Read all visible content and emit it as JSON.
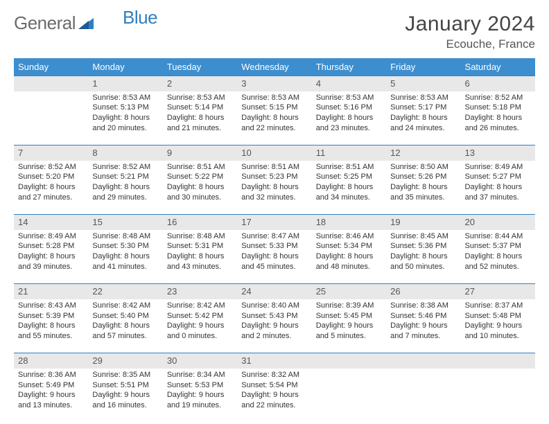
{
  "logo": {
    "part1": "General",
    "part2": "Blue"
  },
  "title": "January 2024",
  "location": "Ecouche, France",
  "colors": {
    "header_bg": "#3d8ecf",
    "row_divider": "#2f7fc2",
    "daynum_bg": "#e8e8e8",
    "logo_gray": "#6b6b6b",
    "logo_blue": "#2f7fc2"
  },
  "day_headers": [
    "Sunday",
    "Monday",
    "Tuesday",
    "Wednesday",
    "Thursday",
    "Friday",
    "Saturday"
  ],
  "weeks": [
    [
      {
        "num": "",
        "sunrise": "",
        "sunset": "",
        "daylight": ""
      },
      {
        "num": "1",
        "sunrise": "Sunrise: 8:53 AM",
        "sunset": "Sunset: 5:13 PM",
        "daylight": "Daylight: 8 hours and 20 minutes."
      },
      {
        "num": "2",
        "sunrise": "Sunrise: 8:53 AM",
        "sunset": "Sunset: 5:14 PM",
        "daylight": "Daylight: 8 hours and 21 minutes."
      },
      {
        "num": "3",
        "sunrise": "Sunrise: 8:53 AM",
        "sunset": "Sunset: 5:15 PM",
        "daylight": "Daylight: 8 hours and 22 minutes."
      },
      {
        "num": "4",
        "sunrise": "Sunrise: 8:53 AM",
        "sunset": "Sunset: 5:16 PM",
        "daylight": "Daylight: 8 hours and 23 minutes."
      },
      {
        "num": "5",
        "sunrise": "Sunrise: 8:53 AM",
        "sunset": "Sunset: 5:17 PM",
        "daylight": "Daylight: 8 hours and 24 minutes."
      },
      {
        "num": "6",
        "sunrise": "Sunrise: 8:52 AM",
        "sunset": "Sunset: 5:18 PM",
        "daylight": "Daylight: 8 hours and 26 minutes."
      }
    ],
    [
      {
        "num": "7",
        "sunrise": "Sunrise: 8:52 AM",
        "sunset": "Sunset: 5:20 PM",
        "daylight": "Daylight: 8 hours and 27 minutes."
      },
      {
        "num": "8",
        "sunrise": "Sunrise: 8:52 AM",
        "sunset": "Sunset: 5:21 PM",
        "daylight": "Daylight: 8 hours and 29 minutes."
      },
      {
        "num": "9",
        "sunrise": "Sunrise: 8:51 AM",
        "sunset": "Sunset: 5:22 PM",
        "daylight": "Daylight: 8 hours and 30 minutes."
      },
      {
        "num": "10",
        "sunrise": "Sunrise: 8:51 AM",
        "sunset": "Sunset: 5:23 PM",
        "daylight": "Daylight: 8 hours and 32 minutes."
      },
      {
        "num": "11",
        "sunrise": "Sunrise: 8:51 AM",
        "sunset": "Sunset: 5:25 PM",
        "daylight": "Daylight: 8 hours and 34 minutes."
      },
      {
        "num": "12",
        "sunrise": "Sunrise: 8:50 AM",
        "sunset": "Sunset: 5:26 PM",
        "daylight": "Daylight: 8 hours and 35 minutes."
      },
      {
        "num": "13",
        "sunrise": "Sunrise: 8:49 AM",
        "sunset": "Sunset: 5:27 PM",
        "daylight": "Daylight: 8 hours and 37 minutes."
      }
    ],
    [
      {
        "num": "14",
        "sunrise": "Sunrise: 8:49 AM",
        "sunset": "Sunset: 5:28 PM",
        "daylight": "Daylight: 8 hours and 39 minutes."
      },
      {
        "num": "15",
        "sunrise": "Sunrise: 8:48 AM",
        "sunset": "Sunset: 5:30 PM",
        "daylight": "Daylight: 8 hours and 41 minutes."
      },
      {
        "num": "16",
        "sunrise": "Sunrise: 8:48 AM",
        "sunset": "Sunset: 5:31 PM",
        "daylight": "Daylight: 8 hours and 43 minutes."
      },
      {
        "num": "17",
        "sunrise": "Sunrise: 8:47 AM",
        "sunset": "Sunset: 5:33 PM",
        "daylight": "Daylight: 8 hours and 45 minutes."
      },
      {
        "num": "18",
        "sunrise": "Sunrise: 8:46 AM",
        "sunset": "Sunset: 5:34 PM",
        "daylight": "Daylight: 8 hours and 48 minutes."
      },
      {
        "num": "19",
        "sunrise": "Sunrise: 8:45 AM",
        "sunset": "Sunset: 5:36 PM",
        "daylight": "Daylight: 8 hours and 50 minutes."
      },
      {
        "num": "20",
        "sunrise": "Sunrise: 8:44 AM",
        "sunset": "Sunset: 5:37 PM",
        "daylight": "Daylight: 8 hours and 52 minutes."
      }
    ],
    [
      {
        "num": "21",
        "sunrise": "Sunrise: 8:43 AM",
        "sunset": "Sunset: 5:39 PM",
        "daylight": "Daylight: 8 hours and 55 minutes."
      },
      {
        "num": "22",
        "sunrise": "Sunrise: 8:42 AM",
        "sunset": "Sunset: 5:40 PM",
        "daylight": "Daylight: 8 hours and 57 minutes."
      },
      {
        "num": "23",
        "sunrise": "Sunrise: 8:42 AM",
        "sunset": "Sunset: 5:42 PM",
        "daylight": "Daylight: 9 hours and 0 minutes."
      },
      {
        "num": "24",
        "sunrise": "Sunrise: 8:40 AM",
        "sunset": "Sunset: 5:43 PM",
        "daylight": "Daylight: 9 hours and 2 minutes."
      },
      {
        "num": "25",
        "sunrise": "Sunrise: 8:39 AM",
        "sunset": "Sunset: 5:45 PM",
        "daylight": "Daylight: 9 hours and 5 minutes."
      },
      {
        "num": "26",
        "sunrise": "Sunrise: 8:38 AM",
        "sunset": "Sunset: 5:46 PM",
        "daylight": "Daylight: 9 hours and 7 minutes."
      },
      {
        "num": "27",
        "sunrise": "Sunrise: 8:37 AM",
        "sunset": "Sunset: 5:48 PM",
        "daylight": "Daylight: 9 hours and 10 minutes."
      }
    ],
    [
      {
        "num": "28",
        "sunrise": "Sunrise: 8:36 AM",
        "sunset": "Sunset: 5:49 PM",
        "daylight": "Daylight: 9 hours and 13 minutes."
      },
      {
        "num": "29",
        "sunrise": "Sunrise: 8:35 AM",
        "sunset": "Sunset: 5:51 PM",
        "daylight": "Daylight: 9 hours and 16 minutes."
      },
      {
        "num": "30",
        "sunrise": "Sunrise: 8:34 AM",
        "sunset": "Sunset: 5:53 PM",
        "daylight": "Daylight: 9 hours and 19 minutes."
      },
      {
        "num": "31",
        "sunrise": "Sunrise: 8:32 AM",
        "sunset": "Sunset: 5:54 PM",
        "daylight": "Daylight: 9 hours and 22 minutes."
      },
      {
        "num": "",
        "sunrise": "",
        "sunset": "",
        "daylight": ""
      },
      {
        "num": "",
        "sunrise": "",
        "sunset": "",
        "daylight": ""
      },
      {
        "num": "",
        "sunrise": "",
        "sunset": "",
        "daylight": ""
      }
    ]
  ]
}
